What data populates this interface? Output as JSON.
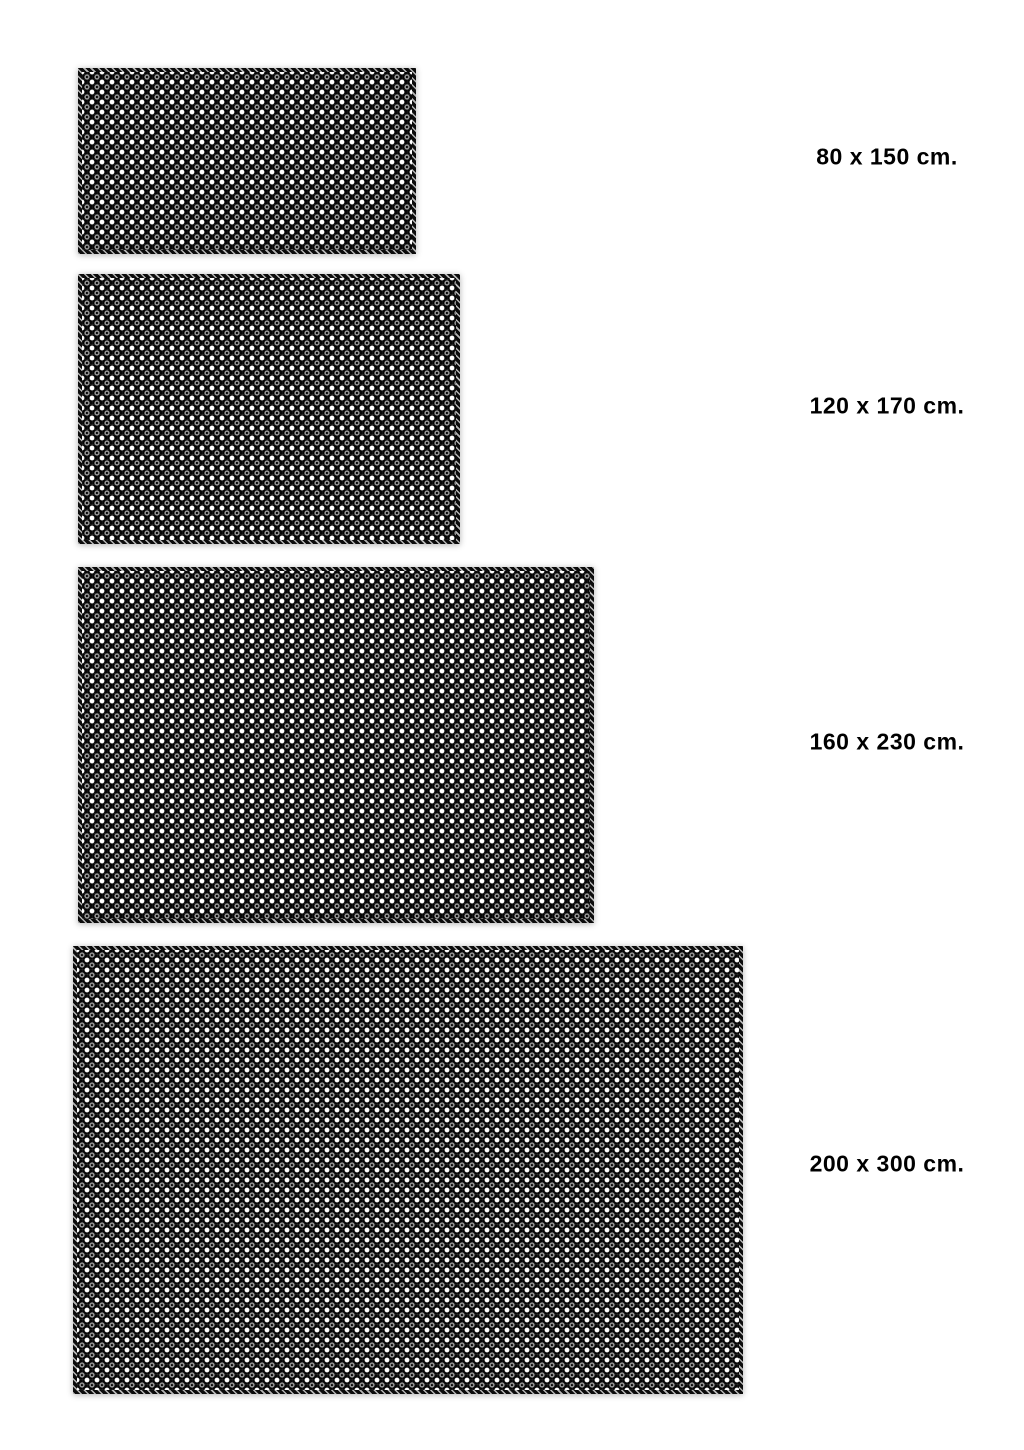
{
  "page": {
    "background_color": "#ffffff",
    "description": "Rug size comparison diagram with four proportionally scaled swatches"
  },
  "colors": {
    "rug_base": "#060606",
    "rug_dot": "#ffffff",
    "rug_ring": "#989898",
    "label_text": "#000000"
  },
  "rugs": [
    {
      "label": "80 x 150 cm.",
      "width_cm": 80,
      "length_cm": 150
    },
    {
      "label": "120 x 170 cm.",
      "width_cm": 120,
      "length_cm": 170
    },
    {
      "label": "160 x 230 cm.",
      "width_cm": 160,
      "length_cm": 230
    },
    {
      "label": "200 x 300 cm.",
      "width_cm": 200,
      "length_cm": 300
    }
  ]
}
